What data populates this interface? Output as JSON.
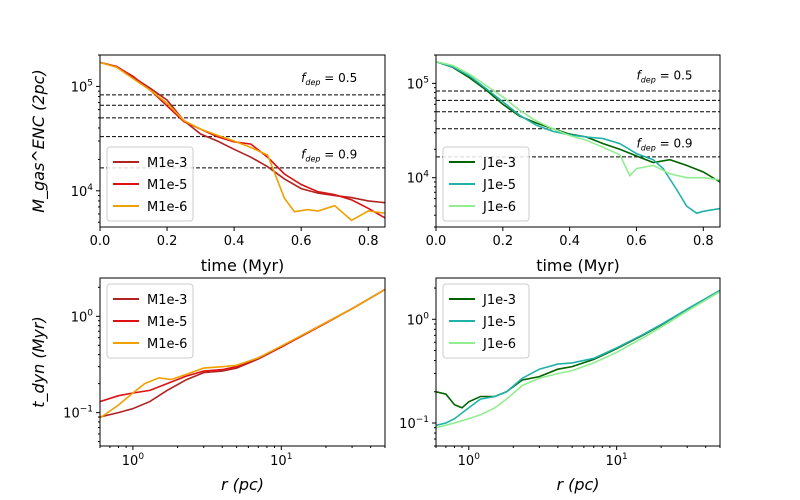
{
  "chart_data": [
    {
      "id": "tl",
      "type": "line",
      "xscale": "linear",
      "yscale": "log",
      "xlabel": "time (Myr)",
      "ylabel": "M_gas^ENC (2pc)",
      "xlim": [
        0,
        0.85
      ],
      "ylim": [
        4500,
        200000
      ],
      "xticks": [
        {
          "v": 0,
          "label": "0.0"
        },
        {
          "v": 0.2,
          "label": "0.2"
        },
        {
          "v": 0.4,
          "label": "0.4"
        },
        {
          "v": 0.6,
          "label": "0.6"
        },
        {
          "v": 0.8,
          "label": "0.8"
        }
      ],
      "yticks": [
        {
          "v": 10000,
          "base": "10",
          "exp": "4"
        },
        {
          "v": 100000,
          "base": "10",
          "exp": "5"
        }
      ],
      "hlines": [
        83000,
        66000,
        50000,
        33000,
        16600
      ],
      "annotations": [
        {
          "x": 0.6,
          "y": 110000,
          "f": "f",
          "sub": "dep",
          "eq": " = 0.5"
        },
        {
          "x": 0.6,
          "y": 20500,
          "f": "f",
          "sub": "dep",
          "eq": " = 0.9"
        }
      ],
      "legend_position": "lower-left",
      "series": [
        {
          "name": "M1e-3",
          "color": "#b22222",
          "points": [
            [
              0,
              170000
            ],
            [
              0.05,
              155000
            ],
            [
              0.1,
              122000
            ],
            [
              0.15,
              96000
            ],
            [
              0.2,
              74000
            ],
            [
              0.25,
              47000
            ],
            [
              0.3,
              35000
            ],
            [
              0.35,
              30000
            ],
            [
              0.4,
              25000
            ],
            [
              0.45,
              21000
            ],
            [
              0.5,
              17000
            ],
            [
              0.55,
              13000
            ],
            [
              0.6,
              10500
            ],
            [
              0.65,
              9500
            ],
            [
              0.7,
              9000
            ],
            [
              0.75,
              8600
            ],
            [
              0.8,
              8000
            ],
            [
              0.85,
              7700
            ]
          ]
        },
        {
          "name": "M1e-5",
          "color": "#dd1111",
          "points": [
            [
              0,
              170000
            ],
            [
              0.05,
              155000
            ],
            [
              0.1,
              124000
            ],
            [
              0.15,
              92000
            ],
            [
              0.2,
              65000
            ],
            [
              0.25,
              46000
            ],
            [
              0.3,
              39000
            ],
            [
              0.35,
              33000
            ],
            [
              0.4,
              29500
            ],
            [
              0.45,
              28000
            ],
            [
              0.5,
              21000
            ],
            [
              0.55,
              14500
            ],
            [
              0.6,
              11500
            ],
            [
              0.65,
              9800
            ],
            [
              0.7,
              9200
            ],
            [
              0.75,
              8200
            ],
            [
              0.8,
              6800
            ],
            [
              0.85,
              5500
            ]
          ]
        },
        {
          "name": "M1e-6",
          "color": "#f0a000",
          "points": [
            [
              0,
              170000
            ],
            [
              0.05,
              152000
            ],
            [
              0.1,
              118000
            ],
            [
              0.15,
              92000
            ],
            [
              0.2,
              69000
            ],
            [
              0.25,
              47000
            ],
            [
              0.3,
              39000
            ],
            [
              0.35,
              34000
            ],
            [
              0.4,
              30000
            ],
            [
              0.45,
              26000
            ],
            [
              0.5,
              22000
            ],
            [
              0.52,
              15000
            ],
            [
              0.55,
              8500
            ],
            [
              0.58,
              6300
            ],
            [
              0.62,
              6600
            ],
            [
              0.65,
              6400
            ],
            [
              0.7,
              7200
            ],
            [
              0.75,
              5200
            ],
            [
              0.8,
              6400
            ],
            [
              0.85,
              6100
            ]
          ]
        }
      ]
    },
    {
      "id": "tr",
      "type": "line",
      "xscale": "linear",
      "yscale": "log",
      "xlabel": "time (Myr)",
      "ylabel": "",
      "xlim": [
        0,
        0.85
      ],
      "ylim": [
        3000,
        200000
      ],
      "xticks": [
        {
          "v": 0,
          "label": "0.0"
        },
        {
          "v": 0.2,
          "label": "0.2"
        },
        {
          "v": 0.4,
          "label": "0.4"
        },
        {
          "v": 0.6,
          "label": "0.6"
        },
        {
          "v": 0.8,
          "label": "0.8"
        }
      ],
      "yticks": [
        {
          "v": 10000,
          "base": "10",
          "exp": "4"
        },
        {
          "v": 100000,
          "base": "10",
          "exp": "5"
        }
      ],
      "hlines": [
        83000,
        66000,
        50000,
        33000,
        16600
      ],
      "annotations": [
        {
          "x": 0.6,
          "y": 110000,
          "f": "f",
          "sub": "dep",
          "eq": " = 0.5"
        },
        {
          "x": 0.6,
          "y": 21000,
          "f": "f",
          "sub": "dep",
          "eq": " = 0.9"
        }
      ],
      "legend_position": "lower-left",
      "series": [
        {
          "name": "J1e-3",
          "color": "#006400",
          "points": [
            [
              0,
              170000
            ],
            [
              0.05,
              148000
            ],
            [
              0.1,
              115000
            ],
            [
              0.15,
              85000
            ],
            [
              0.2,
              60000
            ],
            [
              0.25,
              45000
            ],
            [
              0.3,
              38000
            ],
            [
              0.35,
              33000
            ],
            [
              0.4,
              29000
            ],
            [
              0.45,
              27000
            ],
            [
              0.5,
              23000
            ],
            [
              0.55,
              20000
            ],
            [
              0.6,
              17000
            ],
            [
              0.65,
              14500
            ],
            [
              0.7,
              15500
            ],
            [
              0.75,
              13500
            ],
            [
              0.8,
              11500
            ],
            [
              0.85,
              9000
            ]
          ]
        },
        {
          "name": "J1e-5",
          "color": "#20b2aa",
          "points": [
            [
              0,
              170000
            ],
            [
              0.05,
              150000
            ],
            [
              0.1,
              120000
            ],
            [
              0.15,
              88000
            ],
            [
              0.2,
              64000
            ],
            [
              0.25,
              46000
            ],
            [
              0.3,
              36000
            ],
            [
              0.35,
              31000
            ],
            [
              0.4,
              28500
            ],
            [
              0.45,
              27000
            ],
            [
              0.5,
              26000
            ],
            [
              0.55,
              23000
            ],
            [
              0.6,
              18000
            ],
            [
              0.65,
              15500
            ],
            [
              0.68,
              12500
            ],
            [
              0.72,
              7500
            ],
            [
              0.75,
              5000
            ],
            [
              0.78,
              4200
            ],
            [
              0.8,
              4400
            ],
            [
              0.85,
              4700
            ]
          ]
        },
        {
          "name": "J1e-6",
          "color": "#90ee90",
          "points": [
            [
              0,
              170000
            ],
            [
              0.05,
              155000
            ],
            [
              0.1,
              125000
            ],
            [
              0.15,
              95000
            ],
            [
              0.2,
              72000
            ],
            [
              0.25,
              52000
            ],
            [
              0.3,
              40000
            ],
            [
              0.35,
              33000
            ],
            [
              0.4,
              28000
            ],
            [
              0.45,
              25000
            ],
            [
              0.5,
              21000
            ],
            [
              0.55,
              17500
            ],
            [
              0.58,
              10500
            ],
            [
              0.6,
              12500
            ],
            [
              0.65,
              13500
            ],
            [
              0.7,
              11000
            ],
            [
              0.75,
              10000
            ],
            [
              0.8,
              10000
            ],
            [
              0.85,
              9500
            ]
          ]
        }
      ]
    },
    {
      "id": "bl",
      "type": "line",
      "xscale": "log",
      "yscale": "log",
      "xlabel": "r (pc)",
      "ylabel": "t_dyn (Myr)",
      "xlim": [
        0.6,
        50
      ],
      "ylim": [
        0.045,
        2.5
      ],
      "xticks": [
        {
          "v": 1,
          "base": "10",
          "exp": "0"
        },
        {
          "v": 10,
          "base": "10",
          "exp": "1"
        }
      ],
      "yticks": [
        {
          "v": 0.1,
          "base": "10",
          "exp": "−1"
        },
        {
          "v": 1,
          "base": "10",
          "exp": "0"
        }
      ],
      "hlines": [],
      "annotations": [],
      "legend_position": "upper-left",
      "series": [
        {
          "name": "M1e-3",
          "color": "#b22222",
          "points": [
            [
              0.6,
              0.09
            ],
            [
              0.8,
              0.1
            ],
            [
              1,
              0.11
            ],
            [
              1.3,
              0.13
            ],
            [
              1.7,
              0.17
            ],
            [
              2.3,
              0.22
            ],
            [
              3,
              0.26
            ],
            [
              4,
              0.27
            ],
            [
              5,
              0.29
            ],
            [
              7,
              0.36
            ],
            [
              10,
              0.48
            ],
            [
              15,
              0.68
            ],
            [
              20,
              0.86
            ],
            [
              30,
              1.2
            ],
            [
              50,
              1.9
            ]
          ]
        },
        {
          "name": "M1e-5",
          "color": "#dd1111",
          "points": [
            [
              0.6,
              0.13
            ],
            [
              0.8,
              0.15
            ],
            [
              1,
              0.16
            ],
            [
              1.3,
              0.17
            ],
            [
              1.7,
              0.2
            ],
            [
              2.3,
              0.24
            ],
            [
              3,
              0.27
            ],
            [
              4,
              0.28
            ],
            [
              5,
              0.3
            ],
            [
              7,
              0.37
            ],
            [
              10,
              0.48
            ],
            [
              15,
              0.67
            ],
            [
              20,
              0.85
            ],
            [
              30,
              1.2
            ],
            [
              50,
              1.9
            ]
          ]
        },
        {
          "name": "M1e-6",
          "color": "#f0a000",
          "points": [
            [
              0.6,
              0.088
            ],
            [
              0.8,
              0.12
            ],
            [
              1,
              0.16
            ],
            [
              1.2,
              0.2
            ],
            [
              1.5,
              0.23
            ],
            [
              1.8,
              0.22
            ],
            [
              2.3,
              0.25
            ],
            [
              3,
              0.29
            ],
            [
              4,
              0.3
            ],
            [
              5,
              0.31
            ],
            [
              7,
              0.37
            ],
            [
              10,
              0.49
            ],
            [
              15,
              0.68
            ],
            [
              20,
              0.86
            ],
            [
              30,
              1.2
            ],
            [
              50,
              1.9
            ]
          ]
        }
      ]
    },
    {
      "id": "br",
      "type": "line",
      "xscale": "log",
      "yscale": "log",
      "xlabel": "r (pc)",
      "ylabel": "",
      "xlim": [
        0.6,
        50
      ],
      "ylim": [
        0.06,
        2.5
      ],
      "xticks": [
        {
          "v": 1,
          "base": "10",
          "exp": "0"
        },
        {
          "v": 10,
          "base": "10",
          "exp": "1"
        }
      ],
      "yticks": [
        {
          "v": 0.1,
          "base": "10",
          "exp": "−1"
        },
        {
          "v": 1,
          "base": "10",
          "exp": "0"
        }
      ],
      "hlines": [],
      "annotations": [],
      "legend_position": "upper-left",
      "series": [
        {
          "name": "J1e-3",
          "color": "#006400",
          "points": [
            [
              0.6,
              0.2
            ],
            [
              0.7,
              0.19
            ],
            [
              0.8,
              0.15
            ],
            [
              0.9,
              0.14
            ],
            [
              1,
              0.16
            ],
            [
              1.2,
              0.18
            ],
            [
              1.5,
              0.18
            ],
            [
              1.8,
              0.2
            ],
            [
              2.3,
              0.26
            ],
            [
              3,
              0.28
            ],
            [
              4,
              0.33
            ],
            [
              5,
              0.35
            ],
            [
              7,
              0.41
            ],
            [
              10,
              0.52
            ],
            [
              15,
              0.7
            ],
            [
              20,
              0.88
            ],
            [
              30,
              1.25
            ],
            [
              50,
              1.9
            ]
          ]
        },
        {
          "name": "J1e-5",
          "color": "#20b2aa",
          "points": [
            [
              0.6,
              0.095
            ],
            [
              0.7,
              0.1
            ],
            [
              0.8,
              0.11
            ],
            [
              1,
              0.14
            ],
            [
              1.2,
              0.17
            ],
            [
              1.5,
              0.18
            ],
            [
              1.8,
              0.2
            ],
            [
              2.3,
              0.27
            ],
            [
              3,
              0.33
            ],
            [
              4,
              0.37
            ],
            [
              5,
              0.38
            ],
            [
              7,
              0.42
            ],
            [
              10,
              0.53
            ],
            [
              15,
              0.71
            ],
            [
              20,
              0.89
            ],
            [
              30,
              1.25
            ],
            [
              50,
              1.9
            ]
          ]
        },
        {
          "name": "J1e-6",
          "color": "#90ee90",
          "points": [
            [
              0.6,
              0.09
            ],
            [
              0.8,
              0.1
            ],
            [
              1,
              0.11
            ],
            [
              1.2,
              0.12
            ],
            [
              1.5,
              0.14
            ],
            [
              1.8,
              0.17
            ],
            [
              2.3,
              0.23
            ],
            [
              3,
              0.27
            ],
            [
              4,
              0.3
            ],
            [
              5,
              0.32
            ],
            [
              7,
              0.38
            ],
            [
              10,
              0.48
            ],
            [
              15,
              0.66
            ],
            [
              20,
              0.84
            ],
            [
              30,
              1.2
            ],
            [
              50,
              1.85
            ]
          ]
        }
      ]
    }
  ]
}
